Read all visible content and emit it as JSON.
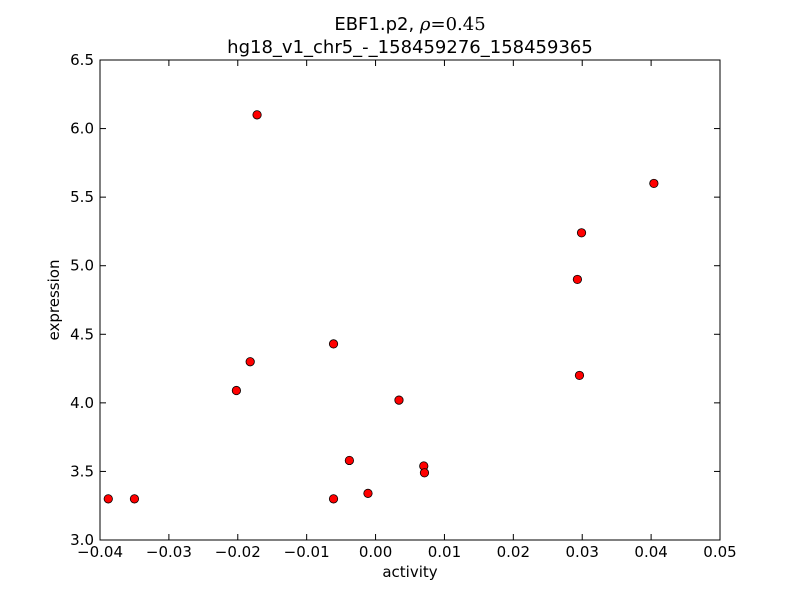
{
  "chart_data": {
    "type": "scatter",
    "title": {
      "line1_prefix": "EBF1.p2, ",
      "rho_symbol": "ρ",
      "rho_value": "=0.45",
      "line2": "hg18_v1_chr5_-_158459276_158459365"
    },
    "xlabel": "activity",
    "ylabel": "expression",
    "xlim": [
      -0.04,
      0.05
    ],
    "ylim": [
      3.0,
      6.5
    ],
    "xticks": [
      -0.04,
      -0.03,
      -0.02,
      -0.01,
      0.0,
      0.01,
      0.02,
      0.03,
      0.04,
      0.05
    ],
    "xtick_labels": [
      "−0.04",
      "−0.03",
      "−0.02",
      "−0.01",
      "0.00",
      "0.01",
      "0.02",
      "0.03",
      "0.04",
      "0.05"
    ],
    "yticks": [
      3.0,
      3.5,
      4.0,
      4.5,
      5.0,
      5.5,
      6.0,
      6.5
    ],
    "ytick_labels": [
      "3.0",
      "3.5",
      "4.0",
      "4.5",
      "5.0",
      "5.5",
      "6.0",
      "6.5"
    ],
    "grid": false,
    "marker_color": "#ff0000",
    "marker_edge_color": "#000000",
    "points": [
      {
        "x": -0.0388,
        "y": 3.3
      },
      {
        "x": -0.035,
        "y": 3.3
      },
      {
        "x": -0.0202,
        "y": 4.09
      },
      {
        "x": -0.0182,
        "y": 4.3
      },
      {
        "x": -0.0172,
        "y": 6.1
      },
      {
        "x": -0.0061,
        "y": 4.43
      },
      {
        "x": -0.0061,
        "y": 3.3
      },
      {
        "x": -0.0038,
        "y": 3.58
      },
      {
        "x": -0.0011,
        "y": 3.34
      },
      {
        "x": 0.0034,
        "y": 4.02
      },
      {
        "x": 0.007,
        "y": 3.54
      },
      {
        "x": 0.0071,
        "y": 3.49
      },
      {
        "x": 0.0293,
        "y": 4.9
      },
      {
        "x": 0.0296,
        "y": 4.2
      },
      {
        "x": 0.0299,
        "y": 5.24
      },
      {
        "x": 0.0404,
        "y": 5.6
      }
    ]
  }
}
